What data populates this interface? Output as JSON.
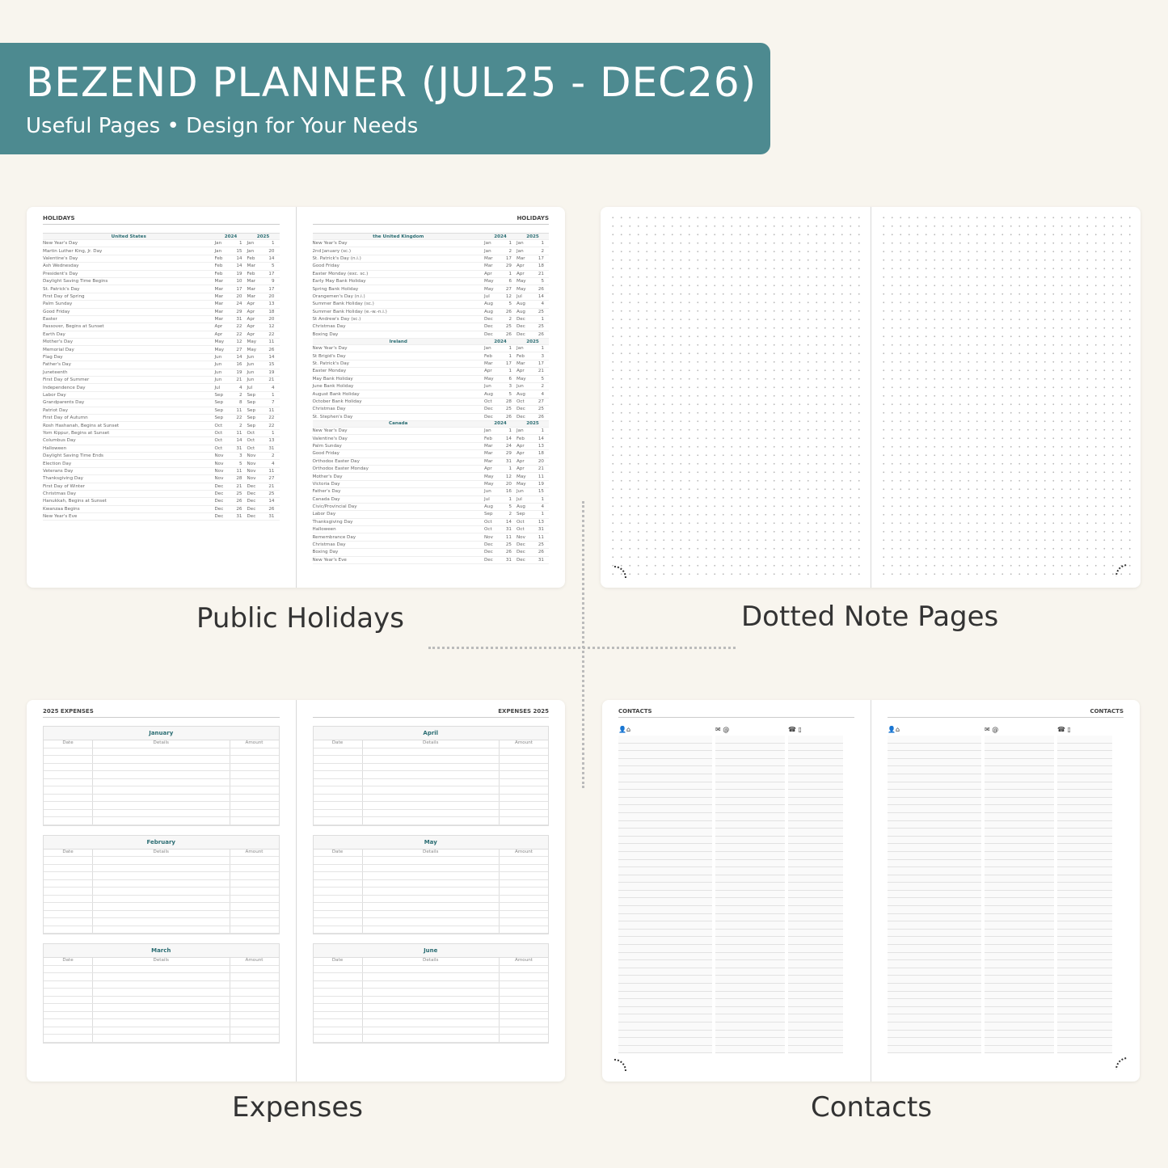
{
  "banner": {
    "title": "BEZEND PLANNER (JUL25 - DEC26)",
    "subtitle": "Useful Pages  •  Design for Your Needs",
    "color": "#4d8a90"
  },
  "captions": {
    "holidays": "Public Holidays",
    "dotted": "Dotted Note Pages",
    "expenses": "Expenses",
    "contacts": "Contacts"
  },
  "holidays": {
    "title": "HOLIDAYS",
    "years": [
      "2024",
      "2025"
    ],
    "left": [
      {
        "country": "United States",
        "rows": [
          [
            "New Year's Day",
            "Jan",
            "1",
            "Jan",
            "1"
          ],
          [
            "Martin Luther King, Jr. Day",
            "Jan",
            "15",
            "Jan",
            "20"
          ],
          [
            "Valentine's Day",
            "Feb",
            "14",
            "Feb",
            "14"
          ],
          [
            "Ash Wednesday",
            "Feb",
            "14",
            "Mar",
            "5"
          ],
          [
            "President's Day",
            "Feb",
            "19",
            "Feb",
            "17"
          ],
          [
            "Daylight Saving Time Begins",
            "Mar",
            "10",
            "Mar",
            "9"
          ],
          [
            "St. Patrick's Day",
            "Mar",
            "17",
            "Mar",
            "17"
          ],
          [
            "First Day of Spring",
            "Mar",
            "20",
            "Mar",
            "20"
          ],
          [
            "Palm Sunday",
            "Mar",
            "24",
            "Apr",
            "13"
          ],
          [
            "Good Friday",
            "Mar",
            "29",
            "Apr",
            "18"
          ],
          [
            "Easter",
            "Mar",
            "31",
            "Apr",
            "20"
          ],
          [
            "Passover, Begins at Sunset",
            "Apr",
            "22",
            "Apr",
            "12"
          ],
          [
            "Earth Day",
            "Apr",
            "22",
            "Apr",
            "22"
          ],
          [
            "Mother's Day",
            "May",
            "12",
            "May",
            "11"
          ],
          [
            "Memorial Day",
            "May",
            "27",
            "May",
            "26"
          ],
          [
            "Flag Day",
            "Jun",
            "14",
            "Jun",
            "14"
          ],
          [
            "Father's Day",
            "Jun",
            "16",
            "Jun",
            "15"
          ],
          [
            "Juneteenth",
            "Jun",
            "19",
            "Jun",
            "19"
          ],
          [
            "First Day of Summer",
            "Jun",
            "21",
            "Jun",
            "21"
          ],
          [
            "Independence Day",
            "Jul",
            "4",
            "Jul",
            "4"
          ],
          [
            "Labor Day",
            "Sep",
            "2",
            "Sep",
            "1"
          ],
          [
            "Grandparents Day",
            "Sep",
            "8",
            "Sep",
            "7"
          ],
          [
            "Patriot Day",
            "Sep",
            "11",
            "Sep",
            "11"
          ],
          [
            "First Day of Autumn",
            "Sep",
            "22",
            "Sep",
            "22"
          ],
          [
            "Rosh Hashanah, Begins at Sunset",
            "Oct",
            "2",
            "Sep",
            "22"
          ],
          [
            "Yom Kippur, Begins at Sunset",
            "Oct",
            "11",
            "Oct",
            "1"
          ],
          [
            "Columbus Day",
            "Oct",
            "14",
            "Oct",
            "13"
          ],
          [
            "Halloween",
            "Oct",
            "31",
            "Oct",
            "31"
          ],
          [
            "Daylight Saving Time Ends",
            "Nov",
            "3",
            "Nov",
            "2"
          ],
          [
            "Election Day",
            "Nov",
            "5",
            "Nov",
            "4"
          ],
          [
            "Veterans Day",
            "Nov",
            "11",
            "Nov",
            "11"
          ],
          [
            "Thanksgiving Day",
            "Nov",
            "28",
            "Nov",
            "27"
          ],
          [
            "First Day of Winter",
            "Dec",
            "21",
            "Dec",
            "21"
          ],
          [
            "Christmas Day",
            "Dec",
            "25",
            "Dec",
            "25"
          ],
          [
            "Hanukkah, Begins at Sunset",
            "Dec",
            "26",
            "Dec",
            "14"
          ],
          [
            "Kwanzaa Begins",
            "Dec",
            "26",
            "Dec",
            "26"
          ],
          [
            "New Year's Eve",
            "Dec",
            "31",
            "Dec",
            "31"
          ]
        ]
      }
    ],
    "right": [
      {
        "country": "the United Kingdom",
        "rows": [
          [
            "New Year's Day",
            "Jan",
            "1",
            "Jan",
            "1"
          ],
          [
            "2nd January (sc.)",
            "Jan",
            "2",
            "Jan",
            "2"
          ],
          [
            "St. Patrick's Day (n.i.)",
            "Mar",
            "17",
            "Mar",
            "17"
          ],
          [
            "Good Friday",
            "Mar",
            "29",
            "Apr",
            "18"
          ],
          [
            "Easter Monday (exc. sc.)",
            "Apr",
            "1",
            "Apr",
            "21"
          ],
          [
            "Early May Bank Holiday",
            "May",
            "6",
            "May",
            "5"
          ],
          [
            "Spring Bank Holiday",
            "May",
            "27",
            "May",
            "26"
          ],
          [
            "Orangemen's Day (n.i.)",
            "Jul",
            "12",
            "Jul",
            "14"
          ],
          [
            "Summer Bank Holiday (sc.)",
            "Aug",
            "5",
            "Aug",
            "4"
          ],
          [
            "Summer Bank Holiday (e.-w.-n.i.)",
            "Aug",
            "26",
            "Aug",
            "25"
          ],
          [
            "St Andrew's Day (sc.)",
            "Dec",
            "2",
            "Dec",
            "1"
          ],
          [
            "Christmas Day",
            "Dec",
            "25",
            "Dec",
            "25"
          ],
          [
            "Boxing Day",
            "Dec",
            "26",
            "Dec",
            "26"
          ]
        ]
      },
      {
        "country": "Ireland",
        "rows": [
          [
            "New Year's Day",
            "Jan",
            "1",
            "Jan",
            "1"
          ],
          [
            "St Brigid's Day",
            "Feb",
            "1",
            "Feb",
            "3"
          ],
          [
            "St. Patrick's Day",
            "Mar",
            "17",
            "Mar",
            "17"
          ],
          [
            "Easter Monday",
            "Apr",
            "1",
            "Apr",
            "21"
          ],
          [
            "May Bank Holiday",
            "May",
            "6",
            "May",
            "5"
          ],
          [
            "June Bank Holiday",
            "Jun",
            "3",
            "Jun",
            "2"
          ],
          [
            "August Bank Holiday",
            "Aug",
            "5",
            "Aug",
            "4"
          ],
          [
            "October Bank Holiday",
            "Oct",
            "28",
            "Oct",
            "27"
          ],
          [
            "Christmas Day",
            "Dec",
            "25",
            "Dec",
            "25"
          ],
          [
            "St. Stephen's Day",
            "Dec",
            "26",
            "Dec",
            "26"
          ]
        ]
      },
      {
        "country": "Canada",
        "rows": [
          [
            "New Year's Day",
            "Jan",
            "1",
            "Jan",
            "1"
          ],
          [
            "Valentine's Day",
            "Feb",
            "14",
            "Feb",
            "14"
          ],
          [
            "Palm Sunday",
            "Mar",
            "24",
            "Apr",
            "13"
          ],
          [
            "Good Friday",
            "Mar",
            "29",
            "Apr",
            "18"
          ],
          [
            "Orthodox Easter Day",
            "Mar",
            "31",
            "Apr",
            "20"
          ],
          [
            "Orthodox Easter Monday",
            "Apr",
            "1",
            "Apr",
            "21"
          ],
          [
            "Mother's Day",
            "May",
            "12",
            "May",
            "11"
          ],
          [
            "Victoria Day",
            "May",
            "20",
            "May",
            "19"
          ],
          [
            "Father's Day",
            "Jun",
            "16",
            "Jun",
            "15"
          ],
          [
            "Canada Day",
            "Jul",
            "1",
            "Jul",
            "1"
          ],
          [
            "Civic/Provincial Day",
            "Aug",
            "5",
            "Aug",
            "4"
          ],
          [
            "Labor Day",
            "Sep",
            "2",
            "Sep",
            "1"
          ],
          [
            "Thanksgiving Day",
            "Oct",
            "14",
            "Oct",
            "13"
          ],
          [
            "Halloween",
            "Oct",
            "31",
            "Oct",
            "31"
          ],
          [
            "Remembrance Day",
            "Nov",
            "11",
            "Nov",
            "11"
          ],
          [
            "Christmas Day",
            "Dec",
            "25",
            "Dec",
            "25"
          ],
          [
            "Boxing Day",
            "Dec",
            "26",
            "Dec",
            "26"
          ],
          [
            "New Year's Eve",
            "Dec",
            "31",
            "Dec",
            "31"
          ]
        ]
      }
    ]
  },
  "expenses": {
    "left_title": "2025 EXPENSES",
    "right_title": "EXPENSES 2025",
    "columns": [
      "Date",
      "Details",
      "Amount"
    ],
    "left_months": [
      "January",
      "February",
      "March"
    ],
    "right_months": [
      "April",
      "May",
      "June"
    ]
  },
  "contacts": {
    "title": "CONTACTS",
    "column_icons": [
      [
        "person-icon",
        "home-icon"
      ],
      [
        "envelope-icon",
        "at-icon"
      ],
      [
        "phone-icon",
        "mobile-icon"
      ]
    ],
    "icon_glyphs": [
      "👤⌂",
      "✉ @",
      "☎ ▯"
    ]
  }
}
